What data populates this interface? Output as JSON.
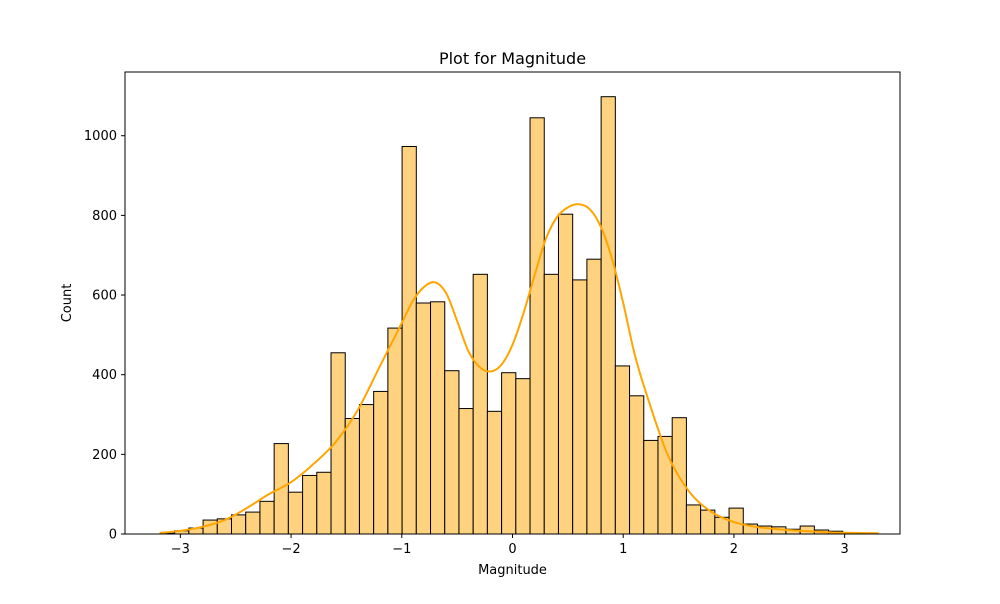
{
  "chart_data": {
    "type": "bar",
    "title": "Plot for Magnitude",
    "xlabel": "Magnitude",
    "ylabel": "Count",
    "xlim": [
      -3.5,
      3.5
    ],
    "ylim": [
      0,
      1160
    ],
    "xticks": [
      -3,
      -2,
      -1,
      0,
      1,
      2,
      3
    ],
    "yticks": [
      0,
      200,
      400,
      600,
      800,
      1000
    ],
    "grid": false,
    "legend": "none",
    "bin_start": -3.18,
    "bin_width": 0.1284,
    "counts": [
      2,
      8,
      15,
      35,
      38,
      48,
      55,
      82,
      227,
      105,
      147,
      155,
      455,
      290,
      325,
      358,
      517,
      973,
      580,
      583,
      410,
      315,
      652,
      308,
      405,
      390,
      1045,
      652,
      803,
      638,
      690,
      1098,
      422,
      347,
      235,
      245,
      292,
      73,
      60,
      42,
      65,
      25,
      20,
      18,
      12,
      20,
      10,
      7,
      3,
      1
    ],
    "bar_fill": "#ffd27f",
    "bar_edge": "#000000",
    "kde": {
      "color": "#ffa500",
      "x": [
        -3.18,
        -3.0,
        -2.8,
        -2.6,
        -2.4,
        -2.2,
        -2.0,
        -1.8,
        -1.6,
        -1.4,
        -1.2,
        -1.0,
        -0.9,
        -0.8,
        -0.7,
        -0.6,
        -0.5,
        -0.4,
        -0.3,
        -0.2,
        -0.1,
        0.0,
        0.1,
        0.2,
        0.3,
        0.4,
        0.5,
        0.6,
        0.7,
        0.8,
        0.9,
        1.0,
        1.1,
        1.2,
        1.4,
        1.6,
        1.8,
        2.0,
        2.2,
        2.4,
        2.6,
        2.8,
        3.0,
        3.3
      ],
      "y": [
        3,
        8,
        18,
        35,
        65,
        100,
        130,
        175,
        230,
        310,
        420,
        530,
        585,
        620,
        632,
        605,
        535,
        460,
        420,
        408,
        425,
        475,
        555,
        650,
        740,
        795,
        820,
        828,
        815,
        770,
        690,
        580,
        455,
        360,
        200,
        105,
        55,
        30,
        18,
        12,
        8,
        5,
        3,
        2
      ]
    }
  }
}
